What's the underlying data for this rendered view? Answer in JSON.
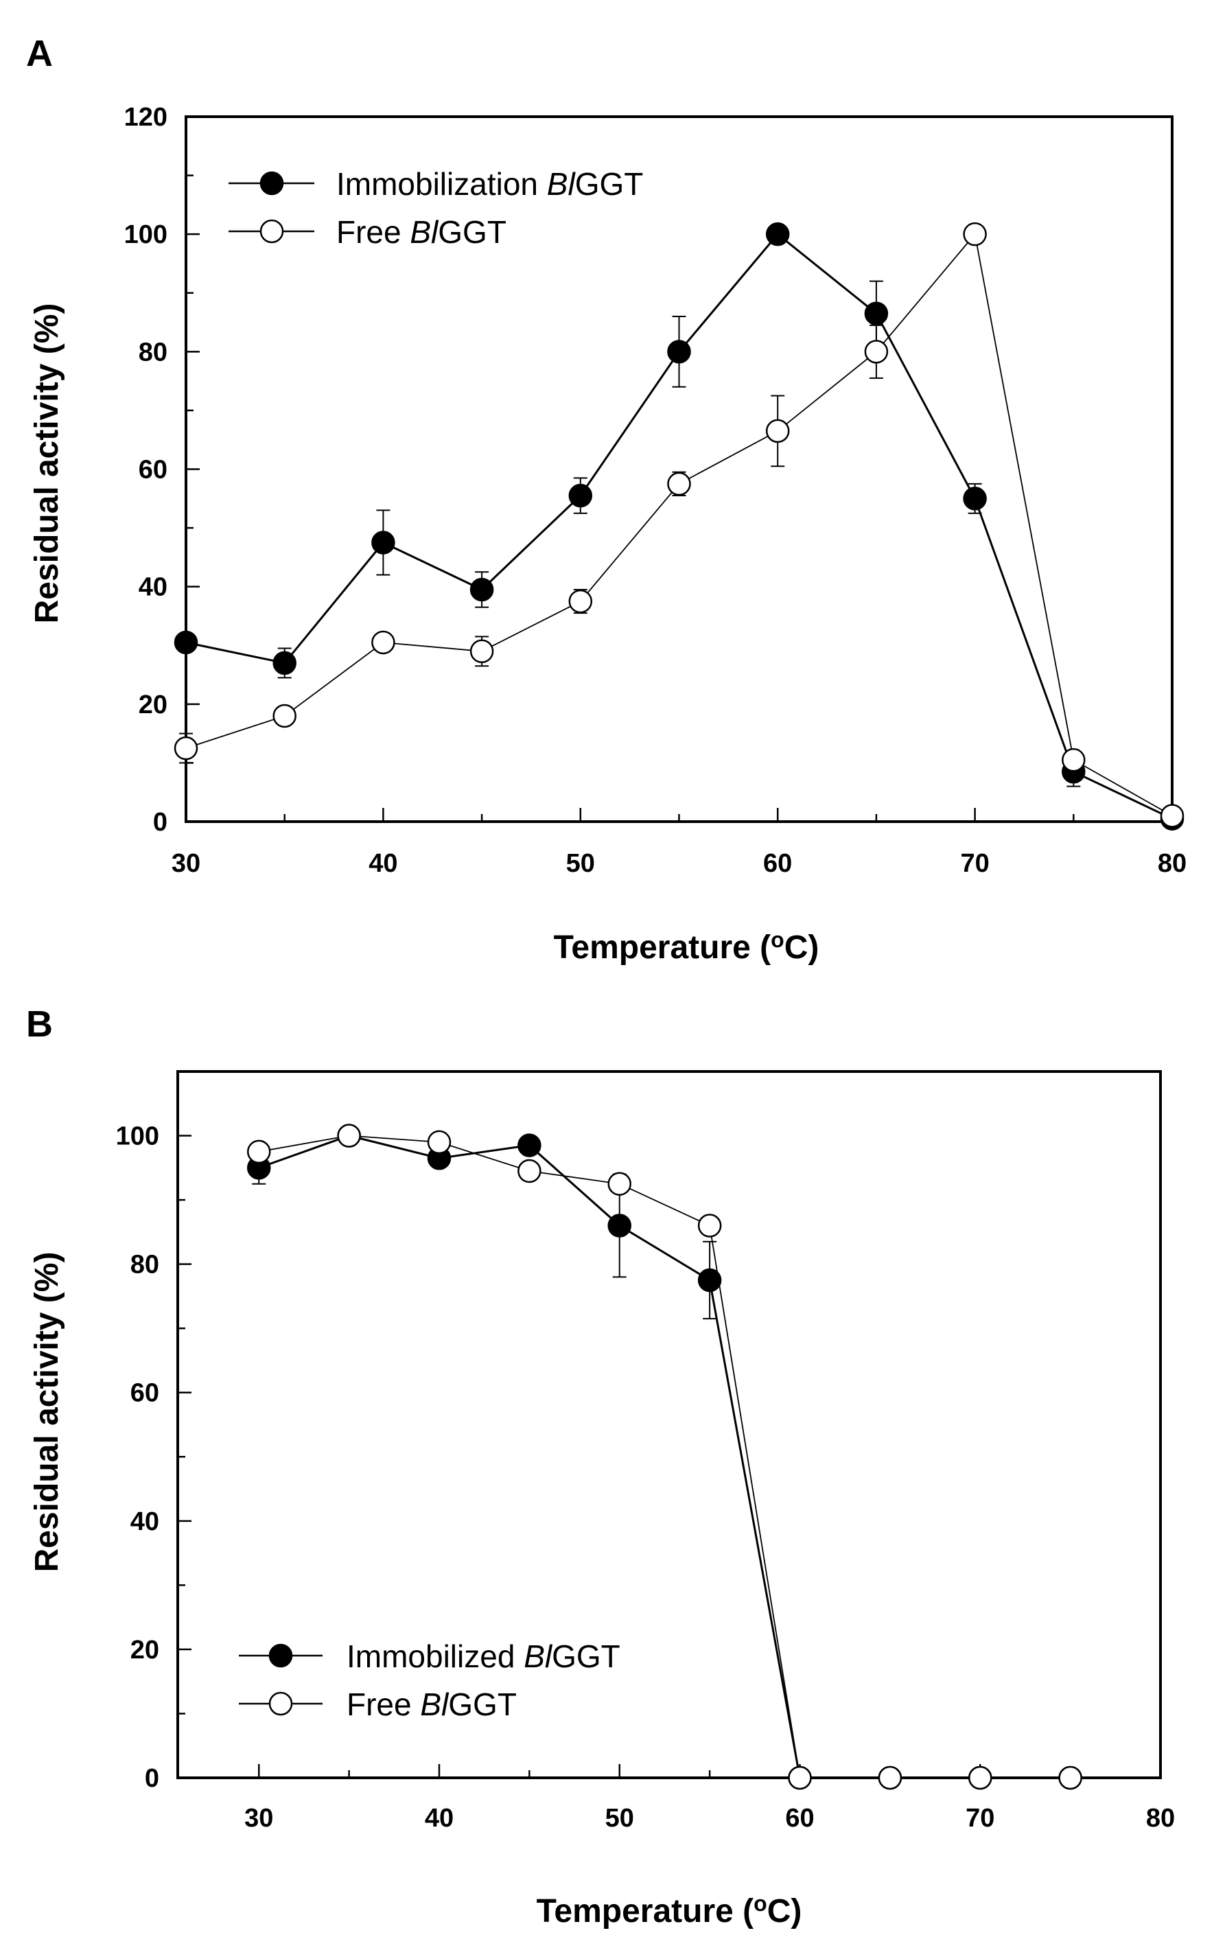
{
  "chart_data": [
    {
      "panel": "A",
      "type": "line",
      "xlabel_main": "Temperature (",
      "xlabel_sup": "o",
      "xlabel_end": "C)",
      "ylabel": "Residual activity (%)",
      "xlim": [
        30,
        80
      ],
      "ylim": [
        0,
        120
      ],
      "xticks": [
        30,
        40,
        50,
        60,
        70,
        80
      ],
      "yticks": [
        0,
        20,
        40,
        60,
        80,
        100,
        120
      ],
      "legend_position": "top-left",
      "series": [
        {
          "name_prefix": "Immobilization ",
          "name_italic": "Bl",
          "name_suffix": "GGT",
          "marker": "filled",
          "x": [
            30,
            35,
            40,
            45,
            50,
            55,
            60,
            65,
            70,
            75,
            80
          ],
          "y": [
            30.5,
            27,
            47.5,
            39.5,
            55.5,
            80,
            100,
            86.5,
            55,
            8.5,
            0.5
          ],
          "err": [
            0,
            2.5,
            5.5,
            3,
            3,
            6,
            0,
            5.5,
            2.5,
            2.5,
            0
          ]
        },
        {
          "name_prefix": "Free ",
          "name_italic": "Bl",
          "name_suffix": "GGT",
          "marker": "open",
          "x": [
            30,
            35,
            40,
            45,
            50,
            55,
            60,
            65,
            70,
            75,
            80
          ],
          "y": [
            12.5,
            18,
            30.5,
            29,
            37.5,
            57.5,
            66.5,
            80,
            100,
            10.5,
            1
          ],
          "err": [
            2.5,
            1,
            0,
            2.5,
            2,
            2,
            6,
            4.5,
            0,
            0,
            0
          ]
        }
      ]
    },
    {
      "panel": "B",
      "type": "line",
      "xlabel_main": "Temperature (",
      "xlabel_sup": "o",
      "xlabel_end": "C)",
      "ylabel": "Residual activity (%)",
      "xlim": [
        25.5,
        80
      ],
      "ylim": [
        0,
        110
      ],
      "xticks": [
        30,
        40,
        50,
        60,
        70,
        80
      ],
      "yticks": [
        0,
        20,
        40,
        60,
        80,
        100
      ],
      "legend_position": "bottom-left",
      "series": [
        {
          "name_prefix": "Immobilized ",
          "name_italic": "Bl",
          "name_suffix": "GGT",
          "marker": "filled",
          "x": [
            30,
            35,
            40,
            45,
            50,
            55,
            60,
            65,
            70,
            75
          ],
          "y": [
            95,
            100,
            96.5,
            98.5,
            86,
            77.5,
            0,
            0,
            0,
            0
          ],
          "err": [
            2.5,
            0,
            0,
            0,
            8,
            6,
            0,
            0,
            0,
            0
          ]
        },
        {
          "name_prefix": "Free ",
          "name_italic": "Bl",
          "name_suffix": "GGT",
          "marker": "open",
          "x": [
            30,
            35,
            40,
            45,
            50,
            55,
            60,
            65,
            70,
            75
          ],
          "y": [
            97.5,
            100,
            99,
            94.5,
            92.5,
            86,
            0,
            0,
            0,
            0
          ],
          "err": [
            0,
            0,
            0,
            0,
            0,
            0,
            0,
            0,
            0,
            0
          ]
        }
      ]
    }
  ]
}
